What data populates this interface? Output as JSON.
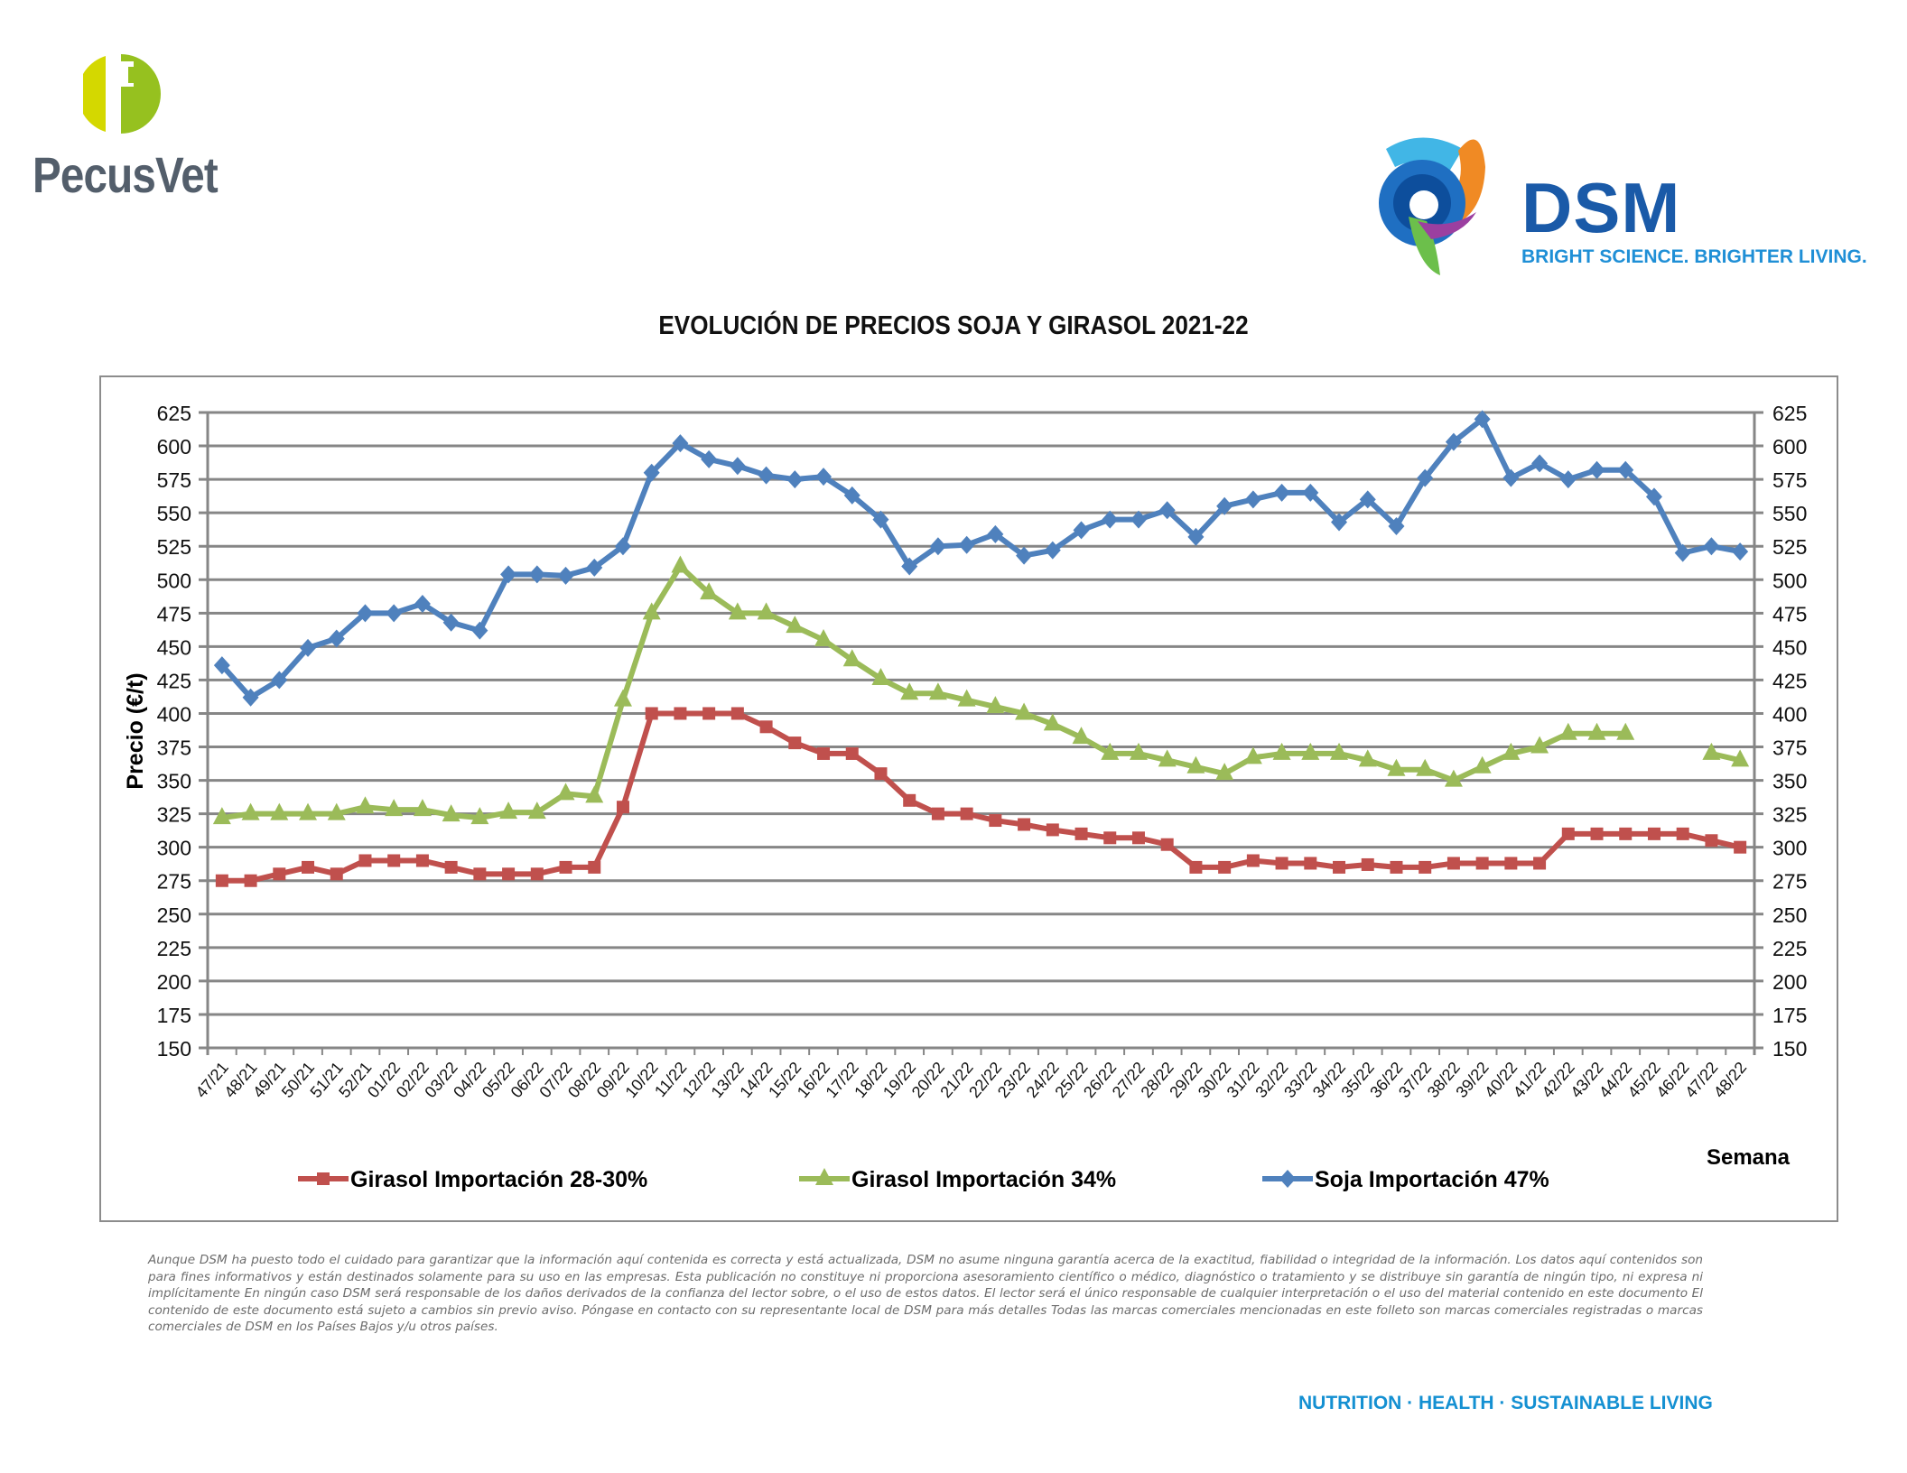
{
  "header": {
    "pecus_logo_text": "PecusVet",
    "dsm_logo_text": "DSM",
    "dsm_tagline": "BRIGHT SCIENCE. BRIGHTER LIVING."
  },
  "footer": {
    "disclaimer": "Aunque DSM ha puesto todo el cuidado para garantizar que la información aquí contenida es correcta y está actualizada, DSM no asume ninguna garantía acerca de la exactitud, fiabilidad o integridad de la información. Los datos aquí contenidos son para fines informativos y están destinados solamente para su uso en las empresas. Esta publicación no constituye ni proporciona asesoramiento científico o médico, diagnóstico o tratamiento y se distribuye sin garantía de ningún tipo, ni expresa ni implícitamente En ningún caso DSM será responsable de los daños derivados de la confianza del lector sobre, o el uso de estos datos. El lector será el único responsable de cualquier interpretación o el uso del material contenido en este documento El contenido de este documento está sujeto a cambios sin previo aviso. Póngase en contacto con su representante local de DSM para más detalles Todas las marcas comerciales mencionadas en este folleto son marcas comerciales registradas o marcas comerciales de DSM en los Países Bajos y/u otros países.",
    "tagline": "NUTRITION  ·  HEALTH  ·  SUSTAINABLE LIVING"
  },
  "colors": {
    "girasol_28_30": "#c0504d",
    "girasol_34": "#9bbb59",
    "soja_47": "#4f81bd",
    "grid": "#868686",
    "pecus_lime": "#d4d800",
    "pecus_green": "#96c11f",
    "pecus_grey": "#535e6b",
    "dsm_blue": "#1a5aa8",
    "dsm_light_blue": "#1f8fd6"
  },
  "chart_data": {
    "type": "line",
    "title": "EVOLUCIÓN DE PRECIOS SOJA Y GIRASOL 2021-22",
    "xlabel": "Semana",
    "ylabel": "Precio (€/t)",
    "ylim": [
      150,
      625
    ],
    "ytick_step": 25,
    "secondary_y_axis": true,
    "grid": true,
    "legend_position": "bottom",
    "categories": [
      "47/21",
      "48/21",
      "49/21",
      "50/21",
      "51/21",
      "52/21",
      "01/22",
      "02/22",
      "03/22",
      "04/22",
      "05/22",
      "06/22",
      "07/22",
      "08/22",
      "09/22",
      "10/22",
      "11/22",
      "12/22",
      "13/22",
      "14/22",
      "15/22",
      "16/22",
      "17/22",
      "18/22",
      "19/22",
      "20/22",
      "21/22",
      "22/22",
      "23/22",
      "24/22",
      "25/22",
      "26/22",
      "27/22",
      "28/22",
      "29/22",
      "30/22",
      "31/22",
      "32/22",
      "33/22",
      "34/22",
      "35/22",
      "36/22",
      "37/22",
      "38/22",
      "39/22",
      "40/22",
      "41/22",
      "42/22",
      "43/22",
      "44/22",
      "45/22",
      "46/22",
      "47/22",
      "48/22"
    ],
    "series": [
      {
        "name": "Girasol Importación 28-30%",
        "marker": "square",
        "values": [
          275,
          275,
          280,
          285,
          280,
          290,
          290,
          290,
          285,
          280,
          280,
          280,
          285,
          285,
          330,
          400,
          400,
          400,
          400,
          390,
          378,
          370,
          370,
          355,
          335,
          325,
          325,
          320,
          317,
          313,
          310,
          307,
          307,
          302,
          285,
          285,
          290,
          288,
          288,
          285,
          287,
          285,
          285,
          288,
          288,
          288,
          288,
          310,
          310,
          310,
          310,
          310,
          305,
          300
        ]
      },
      {
        "name": "Girasol Importación 34%",
        "marker": "triangle",
        "values": [
          322,
          325,
          325,
          325,
          325,
          330,
          328,
          328,
          324,
          322,
          326,
          326,
          340,
          338,
          410,
          475,
          510,
          490,
          475,
          475,
          465,
          455,
          440,
          426,
          415,
          415,
          410,
          405,
          400,
          392,
          382,
          370,
          370,
          365,
          360,
          355,
          367,
          370,
          370,
          370,
          365,
          358,
          358,
          350,
          360,
          370,
          375,
          385,
          385,
          385,
          null,
          null,
          370,
          365
        ]
      },
      {
        "name": "Soja Importación 47%",
        "marker": "diamond",
        "values": [
          436,
          412,
          425,
          449,
          456,
          475,
          475,
          482,
          468,
          462,
          504,
          504,
          503,
          509,
          525,
          580,
          602,
          590,
          585,
          578,
          575,
          577,
          563,
          545,
          510,
          525,
          526,
          534,
          518,
          522,
          537,
          545,
          545,
          552,
          532,
          555,
          560,
          565,
          565,
          543,
          560,
          540,
          576,
          603,
          620,
          576,
          587,
          575,
          582,
          582,
          562,
          520,
          525,
          521
        ]
      }
    ]
  }
}
